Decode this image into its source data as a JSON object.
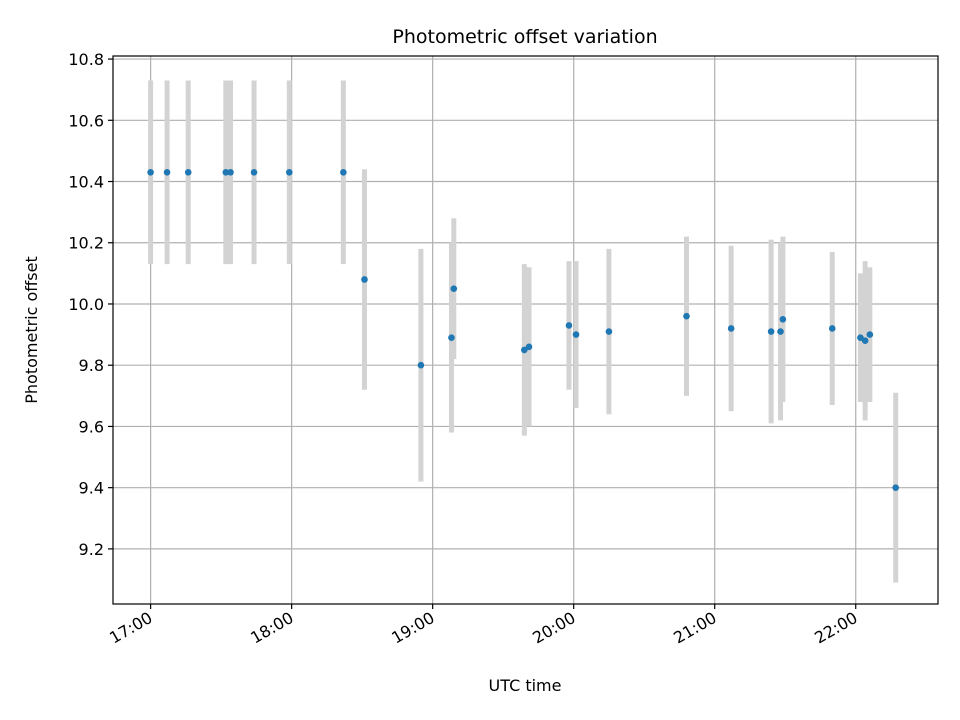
{
  "chart_data": {
    "type": "scatter",
    "title": "Photometric offset variation",
    "xlabel": "UTC time",
    "ylabel": "Photometric offset",
    "x_ticks": [
      "17:00",
      "18:00",
      "19:00",
      "20:00",
      "21:00",
      "22:00"
    ],
    "y_ticks": [
      "9.2",
      "9.4",
      "9.6",
      "9.8",
      "10.0",
      "10.2",
      "10.4",
      "10.6",
      "10.8"
    ],
    "xlim": [
      "16:44",
      "22:35"
    ],
    "ylim": [
      9.02,
      10.81
    ],
    "grid": true,
    "colors": {
      "marker": "#1f77b4",
      "errorbar": "#d3d3d3",
      "grid": "#b0b0b0"
    },
    "series": [
      {
        "points": [
          {
            "t": "17:00",
            "y": 10.43,
            "err": 0.3
          },
          {
            "t": "17:07",
            "y": 10.43,
            "err": 0.3
          },
          {
            "t": "17:16",
            "y": 10.43,
            "err": 0.3
          },
          {
            "t": "17:32",
            "y": 10.43,
            "err": 0.3
          },
          {
            "t": "17:34",
            "y": 10.43,
            "err": 0.3
          },
          {
            "t": "17:44",
            "y": 10.43,
            "err": 0.3
          },
          {
            "t": "17:59",
            "y": 10.43,
            "err": 0.3
          },
          {
            "t": "18:22",
            "y": 10.43,
            "err": 0.3
          },
          {
            "t": "18:31",
            "y": 10.08,
            "err": 0.36
          },
          {
            "t": "18:55",
            "y": 9.8,
            "err": 0.38
          },
          {
            "t": "19:08",
            "y": 9.89,
            "err": 0.31
          },
          {
            "t": "19:09",
            "y": 10.05,
            "err": 0.23
          },
          {
            "t": "19:39",
            "y": 9.85,
            "err": 0.28
          },
          {
            "t": "19:41",
            "y": 9.86,
            "err": 0.26
          },
          {
            "t": "19:58",
            "y": 9.93,
            "err": 0.21
          },
          {
            "t": "20:01",
            "y": 9.9,
            "err": 0.24
          },
          {
            "t": "20:15",
            "y": 9.91,
            "err": 0.27
          },
          {
            "t": "20:48",
            "y": 9.96,
            "err": 0.26
          },
          {
            "t": "21:07",
            "y": 9.92,
            "err": 0.27
          },
          {
            "t": "21:24",
            "y": 9.91,
            "err": 0.3
          },
          {
            "t": "21:28",
            "y": 9.91,
            "err": 0.29
          },
          {
            "t": "21:29",
            "y": 9.95,
            "err": 0.27
          },
          {
            "t": "21:50",
            "y": 9.92,
            "err": 0.25
          },
          {
            "t": "22:02",
            "y": 9.89,
            "err": 0.21
          },
          {
            "t": "22:04",
            "y": 9.88,
            "err": 0.26
          },
          {
            "t": "22:06",
            "y": 9.9,
            "err": 0.22
          },
          {
            "t": "22:17",
            "y": 9.4,
            "err": 0.31
          }
        ]
      }
    ]
  }
}
